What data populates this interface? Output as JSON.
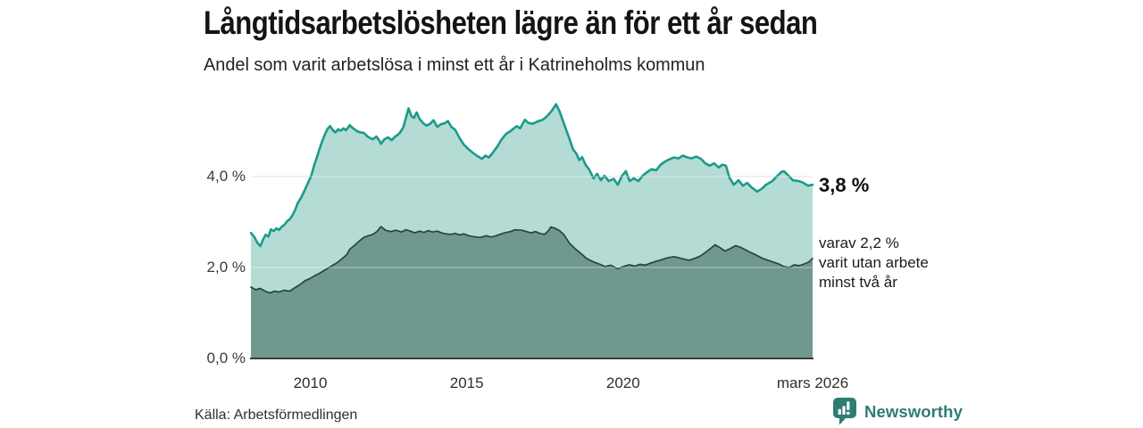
{
  "header": {
    "title": "Långtidsarbetslösheten lägre än för ett år sedan",
    "subtitle": "Andel som varit arbetslösa i minst ett år i Katrineholms kommun"
  },
  "annotations": {
    "total_label": "3,8 %",
    "sub_lines": [
      "varav 2,2 %",
      "varit utan arbete",
      "minst två år"
    ]
  },
  "source": {
    "label": "Källa: Arbetsförmedlingen"
  },
  "branding": {
    "name": "Newsworthy",
    "icon": "newsworthy-pin-barchart-icon"
  },
  "colors": {
    "teal_line": "#1a9b8b",
    "light_fill": "#b4dbd4",
    "dark_line": "#28443e",
    "dark_fill": "#6f988f",
    "grid": "#dcdcdc",
    "grid_overlay": "rgba(255,255,255,0.38)",
    "axis": "#3c3c3c",
    "text": "#1a1a1a",
    "brand": "#2e7d75"
  },
  "chart_data": {
    "type": "area",
    "title": "Långtidsarbetslösheten lägre än för ett år sedan",
    "subtitle": "Andel som varit arbetslösa i minst ett år i Katrineholms kommun",
    "source": "Källa: Arbetsförmedlingen",
    "unit": "%",
    "grid": "horizontal",
    "legend_position": "right-annotations",
    "x_range": [
      2008.1,
      2026.06
    ],
    "y_range": [
      0,
      5.8
    ],
    "y_ticks": [
      {
        "v": 4,
        "label": "4,0 %"
      },
      {
        "v": 2,
        "label": "2,0 %"
      },
      {
        "v": 0,
        "label": "0,0 %"
      }
    ],
    "x_ticks": [
      {
        "t": 2010,
        "label": "2010"
      },
      {
        "t": 2015,
        "label": "2015"
      },
      {
        "t": 2020,
        "label": "2020"
      },
      {
        "t": 2026.06,
        "label": "mars 2026"
      }
    ],
    "series": [
      {
        "name": "Arbetslösa minst ett år",
        "latest_label": "3,8 %",
        "latest_value": 3.8,
        "points": [
          [
            2008.1,
            2.76
          ],
          [
            2008.2,
            2.68
          ],
          [
            2008.31,
            2.54
          ],
          [
            2008.4,
            2.47
          ],
          [
            2008.49,
            2.62
          ],
          [
            2008.57,
            2.72
          ],
          [
            2008.66,
            2.68
          ],
          [
            2008.74,
            2.84
          ],
          [
            2008.83,
            2.8
          ],
          [
            2008.91,
            2.86
          ],
          [
            2009.0,
            2.83
          ],
          [
            2009.09,
            2.9
          ],
          [
            2009.17,
            2.94
          ],
          [
            2009.26,
            3.02
          ],
          [
            2009.34,
            3.06
          ],
          [
            2009.43,
            3.15
          ],
          [
            2009.51,
            3.26
          ],
          [
            2009.6,
            3.42
          ],
          [
            2009.69,
            3.52
          ],
          [
            2009.77,
            3.63
          ],
          [
            2009.86,
            3.76
          ],
          [
            2009.94,
            3.88
          ],
          [
            2010.03,
            4.02
          ],
          [
            2010.11,
            4.22
          ],
          [
            2010.2,
            4.4
          ],
          [
            2010.29,
            4.6
          ],
          [
            2010.37,
            4.76
          ],
          [
            2010.46,
            4.92
          ],
          [
            2010.54,
            5.04
          ],
          [
            2010.63,
            5.11
          ],
          [
            2010.71,
            5.03
          ],
          [
            2010.8,
            4.97
          ],
          [
            2010.89,
            5.04
          ],
          [
            2010.97,
            5.01
          ],
          [
            2011.06,
            5.06
          ],
          [
            2011.14,
            5.02
          ],
          [
            2011.26,
            5.13
          ],
          [
            2011.37,
            5.06
          ],
          [
            2011.49,
            5.0
          ],
          [
            2011.6,
            4.97
          ],
          [
            2011.71,
            4.96
          ],
          [
            2011.83,
            4.88
          ],
          [
            2011.91,
            4.85
          ],
          [
            2012.0,
            4.82
          ],
          [
            2012.11,
            4.88
          ],
          [
            2012.2,
            4.8
          ],
          [
            2012.26,
            4.72
          ],
          [
            2012.37,
            4.82
          ],
          [
            2012.49,
            4.86
          ],
          [
            2012.6,
            4.8
          ],
          [
            2012.71,
            4.88
          ],
          [
            2012.8,
            4.92
          ],
          [
            2012.86,
            4.96
          ],
          [
            2012.97,
            5.08
          ],
          [
            2013.06,
            5.3
          ],
          [
            2013.14,
            5.5
          ],
          [
            2013.23,
            5.33
          ],
          [
            2013.31,
            5.29
          ],
          [
            2013.4,
            5.41
          ],
          [
            2013.49,
            5.27
          ],
          [
            2013.6,
            5.18
          ],
          [
            2013.71,
            5.12
          ],
          [
            2013.83,
            5.16
          ],
          [
            2013.94,
            5.24
          ],
          [
            2014.06,
            5.09
          ],
          [
            2014.17,
            5.15
          ],
          [
            2014.29,
            5.17
          ],
          [
            2014.4,
            5.22
          ],
          [
            2014.51,
            5.09
          ],
          [
            2014.63,
            5.03
          ],
          [
            2014.77,
            4.85
          ],
          [
            2014.91,
            4.7
          ],
          [
            2015.06,
            4.6
          ],
          [
            2015.2,
            4.52
          ],
          [
            2015.34,
            4.45
          ],
          [
            2015.49,
            4.39
          ],
          [
            2015.6,
            4.46
          ],
          [
            2015.71,
            4.42
          ],
          [
            2015.83,
            4.52
          ],
          [
            2015.97,
            4.65
          ],
          [
            2016.11,
            4.81
          ],
          [
            2016.26,
            4.94
          ],
          [
            2016.4,
            5.0
          ],
          [
            2016.49,
            5.05
          ],
          [
            2016.6,
            5.11
          ],
          [
            2016.71,
            5.06
          ],
          [
            2016.86,
            5.25
          ],
          [
            2016.97,
            5.18
          ],
          [
            2017.11,
            5.16
          ],
          [
            2017.26,
            5.21
          ],
          [
            2017.4,
            5.24
          ],
          [
            2017.49,
            5.28
          ],
          [
            2017.6,
            5.35
          ],
          [
            2017.71,
            5.44
          ],
          [
            2017.86,
            5.59
          ],
          [
            2017.97,
            5.43
          ],
          [
            2018.11,
            5.16
          ],
          [
            2018.29,
            4.82
          ],
          [
            2018.4,
            4.6
          ],
          [
            2018.51,
            4.5
          ],
          [
            2018.6,
            4.36
          ],
          [
            2018.69,
            4.43
          ],
          [
            2018.8,
            4.26
          ],
          [
            2018.91,
            4.16
          ],
          [
            2019.06,
            3.96
          ],
          [
            2019.17,
            4.06
          ],
          [
            2019.29,
            3.92
          ],
          [
            2019.4,
            4.02
          ],
          [
            2019.54,
            3.9
          ],
          [
            2019.7,
            3.95
          ],
          [
            2019.83,
            3.82
          ],
          [
            2019.97,
            4.02
          ],
          [
            2020.09,
            4.12
          ],
          [
            2020.21,
            3.9
          ],
          [
            2020.34,
            3.96
          ],
          [
            2020.49,
            3.9
          ],
          [
            2020.63,
            4.02
          ],
          [
            2020.77,
            4.1
          ],
          [
            2020.91,
            4.16
          ],
          [
            2021.06,
            4.14
          ],
          [
            2021.2,
            4.26
          ],
          [
            2021.34,
            4.33
          ],
          [
            2021.49,
            4.38
          ],
          [
            2021.63,
            4.42
          ],
          [
            2021.77,
            4.4
          ],
          [
            2021.91,
            4.46
          ],
          [
            2022.06,
            4.42
          ],
          [
            2022.2,
            4.4
          ],
          [
            2022.34,
            4.44
          ],
          [
            2022.49,
            4.39
          ],
          [
            2022.63,
            4.29
          ],
          [
            2022.77,
            4.24
          ],
          [
            2022.91,
            4.29
          ],
          [
            2023.06,
            4.2
          ],
          [
            2023.17,
            4.26
          ],
          [
            2023.29,
            4.24
          ],
          [
            2023.4,
            3.98
          ],
          [
            2023.54,
            3.82
          ],
          [
            2023.69,
            3.92
          ],
          [
            2023.83,
            3.8
          ],
          [
            2023.97,
            3.86
          ],
          [
            2024.11,
            3.76
          ],
          [
            2024.29,
            3.67
          ],
          [
            2024.43,
            3.73
          ],
          [
            2024.57,
            3.82
          ],
          [
            2024.77,
            3.9
          ],
          [
            2024.91,
            4.0
          ],
          [
            2025.06,
            4.1
          ],
          [
            2025.14,
            4.12
          ],
          [
            2025.29,
            4.02
          ],
          [
            2025.43,
            3.92
          ],
          [
            2025.63,
            3.9
          ],
          [
            2025.77,
            3.86
          ],
          [
            2025.91,
            3.8
          ],
          [
            2026.06,
            3.82
          ]
        ]
      },
      {
        "name": "Varav utan arbete minst två år",
        "latest_label": "2,2 %",
        "latest_value": 2.2,
        "points": [
          [
            2008.1,
            1.57
          ],
          [
            2008.25,
            1.51
          ],
          [
            2008.4,
            1.54
          ],
          [
            2008.55,
            1.48
          ],
          [
            2008.7,
            1.44
          ],
          [
            2008.85,
            1.48
          ],
          [
            2009.0,
            1.46
          ],
          [
            2009.15,
            1.5
          ],
          [
            2009.34,
            1.48
          ],
          [
            2009.5,
            1.55
          ],
          [
            2009.66,
            1.62
          ],
          [
            2009.83,
            1.71
          ],
          [
            2010.0,
            1.76
          ],
          [
            2010.14,
            1.82
          ],
          [
            2010.29,
            1.87
          ],
          [
            2010.45,
            1.94
          ],
          [
            2010.6,
            2.0
          ],
          [
            2010.77,
            2.07
          ],
          [
            2010.9,
            2.13
          ],
          [
            2011.06,
            2.22
          ],
          [
            2011.16,
            2.28
          ],
          [
            2011.26,
            2.4
          ],
          [
            2011.4,
            2.48
          ],
          [
            2011.56,
            2.58
          ],
          [
            2011.71,
            2.66
          ],
          [
            2011.86,
            2.7
          ],
          [
            2012.0,
            2.73
          ],
          [
            2012.13,
            2.79
          ],
          [
            2012.26,
            2.9
          ],
          [
            2012.4,
            2.82
          ],
          [
            2012.57,
            2.79
          ],
          [
            2012.74,
            2.82
          ],
          [
            2012.91,
            2.78
          ],
          [
            2013.06,
            2.83
          ],
          [
            2013.2,
            2.8
          ],
          [
            2013.34,
            2.76
          ],
          [
            2013.49,
            2.8
          ],
          [
            2013.63,
            2.77
          ],
          [
            2013.77,
            2.81
          ],
          [
            2013.91,
            2.78
          ],
          [
            2014.06,
            2.8
          ],
          [
            2014.2,
            2.76
          ],
          [
            2014.34,
            2.74
          ],
          [
            2014.49,
            2.73
          ],
          [
            2014.63,
            2.75
          ],
          [
            2014.77,
            2.72
          ],
          [
            2014.91,
            2.74
          ],
          [
            2015.06,
            2.7
          ],
          [
            2015.2,
            2.68
          ],
          [
            2015.43,
            2.66
          ],
          [
            2015.63,
            2.7
          ],
          [
            2015.77,
            2.67
          ],
          [
            2015.91,
            2.69
          ],
          [
            2016.06,
            2.73
          ],
          [
            2016.2,
            2.76
          ],
          [
            2016.4,
            2.79
          ],
          [
            2016.54,
            2.83
          ],
          [
            2016.77,
            2.82
          ],
          [
            2016.91,
            2.79
          ],
          [
            2017.06,
            2.76
          ],
          [
            2017.2,
            2.79
          ],
          [
            2017.34,
            2.75
          ],
          [
            2017.49,
            2.73
          ],
          [
            2017.6,
            2.8
          ],
          [
            2017.69,
            2.89
          ],
          [
            2017.83,
            2.86
          ],
          [
            2017.97,
            2.81
          ],
          [
            2018.11,
            2.72
          ],
          [
            2018.29,
            2.53
          ],
          [
            2018.46,
            2.42
          ],
          [
            2018.63,
            2.32
          ],
          [
            2018.83,
            2.2
          ],
          [
            2019.0,
            2.14
          ],
          [
            2019.26,
            2.07
          ],
          [
            2019.43,
            2.02
          ],
          [
            2019.6,
            2.05
          ],
          [
            2019.83,
            1.97
          ],
          [
            2020.0,
            2.02
          ],
          [
            2020.2,
            2.06
          ],
          [
            2020.37,
            2.03
          ],
          [
            2020.54,
            2.07
          ],
          [
            2020.71,
            2.05
          ],
          [
            2020.89,
            2.1
          ],
          [
            2021.06,
            2.14
          ],
          [
            2021.23,
            2.17
          ],
          [
            2021.4,
            2.21
          ],
          [
            2021.63,
            2.24
          ],
          [
            2021.8,
            2.21
          ],
          [
            2021.97,
            2.18
          ],
          [
            2022.11,
            2.16
          ],
          [
            2022.29,
            2.2
          ],
          [
            2022.46,
            2.25
          ],
          [
            2022.63,
            2.33
          ],
          [
            2022.8,
            2.42
          ],
          [
            2022.94,
            2.5
          ],
          [
            2023.09,
            2.44
          ],
          [
            2023.26,
            2.36
          ],
          [
            2023.43,
            2.42
          ],
          [
            2023.6,
            2.48
          ],
          [
            2023.77,
            2.44
          ],
          [
            2023.94,
            2.38
          ],
          [
            2024.11,
            2.32
          ],
          [
            2024.29,
            2.26
          ],
          [
            2024.46,
            2.2
          ],
          [
            2024.63,
            2.16
          ],
          [
            2024.8,
            2.12
          ],
          [
            2024.97,
            2.08
          ],
          [
            2025.14,
            2.02
          ],
          [
            2025.31,
            2.0
          ],
          [
            2025.48,
            2.06
          ],
          [
            2025.63,
            2.04
          ],
          [
            2025.8,
            2.08
          ],
          [
            2025.94,
            2.12
          ],
          [
            2026.06,
            2.2
          ]
        ]
      }
    ]
  }
}
